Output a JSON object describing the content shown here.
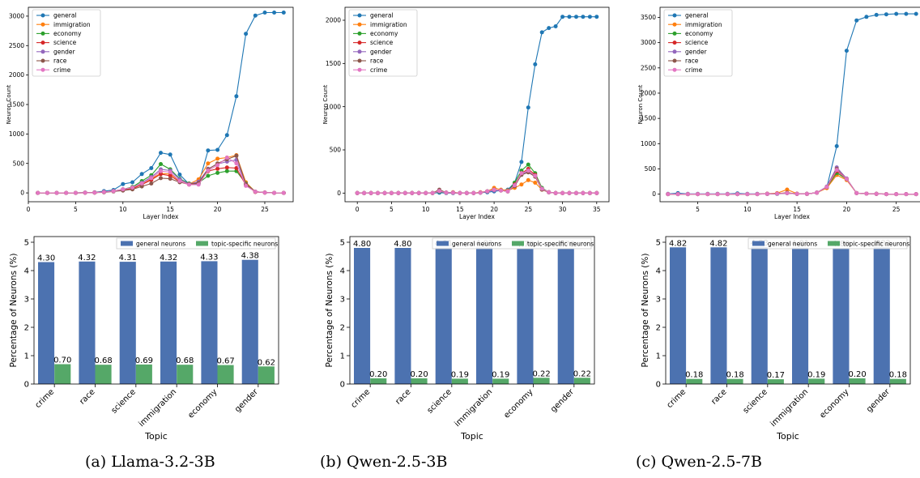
{
  "line_legend_names": [
    "general",
    "immigration",
    "economy",
    "science",
    "gender",
    "race",
    "crime"
  ],
  "line_colors": [
    "#1f77b4",
    "#ff7f0e",
    "#2ca02c",
    "#d62728",
    "#9467bd",
    "#8c564b",
    "#e377c2"
  ],
  "bar_colors": {
    "general": "#4c72b0",
    "topic": "#55a868"
  },
  "bar_legend": [
    "general neurons",
    "topic-specific neurons"
  ],
  "captions": [
    "(a) Llama-3.2-3B",
    "(b) Qwen-2.5-3B",
    "(c) Qwen-2.5-7B"
  ],
  "chart_data": [
    {
      "type": "line",
      "xlabel": "Layer Index",
      "ylabel": "Neuron Count",
      "xlim": [
        0,
        28
      ],
      "ylim": [
        -150,
        3150
      ],
      "xticks": [
        0,
        5,
        10,
        15,
        20,
        25
      ],
      "yticks": [
        0,
        500,
        1000,
        1500,
        2000,
        2500,
        3000
      ],
      "x": [
        1,
        2,
        3,
        4,
        5,
        6,
        7,
        8,
        9,
        10,
        11,
        12,
        13,
        14,
        15,
        16,
        17,
        18,
        19,
        20,
        21,
        22,
        23,
        24,
        25,
        26,
        27
      ],
      "series": [
        {
          "name": "general",
          "values": [
            0,
            0,
            0,
            0,
            0,
            5,
            10,
            30,
            50,
            150,
            180,
            320,
            420,
            680,
            650,
            310,
            150,
            150,
            720,
            730,
            980,
            1640,
            2700,
            3010,
            3060,
            3060,
            3060
          ]
        },
        {
          "name": "immigration",
          "values": [
            0,
            0,
            0,
            0,
            0,
            2,
            5,
            15,
            30,
            60,
            80,
            140,
            240,
            330,
            320,
            200,
            150,
            230,
            500,
            580,
            600,
            640,
            180,
            20,
            5,
            0,
            0
          ]
        },
        {
          "name": "economy",
          "values": [
            0,
            0,
            0,
            0,
            0,
            2,
            5,
            15,
            30,
            60,
            100,
            200,
            300,
            490,
            400,
            240,
            160,
            170,
            290,
            340,
            370,
            370,
            160,
            20,
            5,
            0,
            0
          ]
        },
        {
          "name": "science",
          "values": [
            0,
            0,
            0,
            0,
            0,
            2,
            5,
            15,
            30,
            50,
            70,
            140,
            220,
            320,
            290,
            190,
            140,
            170,
            370,
            410,
            430,
            420,
            130,
            15,
            5,
            0,
            0
          ]
        },
        {
          "name": "gender",
          "values": [
            0,
            0,
            0,
            0,
            0,
            2,
            5,
            15,
            30,
            60,
            90,
            170,
            270,
            400,
            380,
            230,
            150,
            190,
            410,
            490,
            530,
            560,
            150,
            20,
            5,
            0,
            0
          ]
        },
        {
          "name": "race",
          "values": [
            0,
            0,
            0,
            0,
            0,
            2,
            5,
            10,
            25,
            40,
            60,
            110,
            160,
            250,
            240,
            180,
            150,
            170,
            400,
            500,
            570,
            630,
            150,
            20,
            5,
            0,
            0
          ]
        },
        {
          "name": "crime",
          "values": [
            0,
            0,
            0,
            0,
            0,
            2,
            5,
            15,
            30,
            60,
            90,
            160,
            250,
            370,
            350,
            200,
            140,
            140,
            380,
            470,
            600,
            500,
            120,
            20,
            5,
            0,
            0
          ]
        }
      ]
    },
    {
      "type": "line",
      "xlabel": "Layer Index",
      "ylabel": "Neuron Count",
      "xlim": [
        -1.8,
        36.8
      ],
      "ylim": [
        -100,
        2150
      ],
      "xticks": [
        0,
        5,
        10,
        15,
        20,
        25,
        30,
        35
      ],
      "yticks": [
        0,
        500,
        1000,
        1500,
        2000
      ],
      "x": [
        0,
        1,
        2,
        3,
        4,
        5,
        6,
        7,
        8,
        9,
        10,
        11,
        12,
        13,
        14,
        15,
        16,
        17,
        18,
        19,
        20,
        21,
        22,
        23,
        24,
        25,
        26,
        27,
        28,
        29,
        30,
        31,
        32,
        33,
        34,
        35
      ],
      "series": [
        {
          "name": "general",
          "values": [
            0,
            0,
            0,
            0,
            0,
            0,
            0,
            0,
            0,
            0,
            0,
            0,
            5,
            0,
            0,
            0,
            0,
            0,
            5,
            10,
            20,
            30,
            40,
            120,
            360,
            990,
            1490,
            1860,
            1910,
            1930,
            2040,
            2040,
            2040,
            2040,
            2040,
            2040
          ]
        },
        {
          "name": "immigration",
          "values": [
            0,
            0,
            0,
            0,
            0,
            0,
            0,
            0,
            0,
            0,
            0,
            0,
            20,
            5,
            10,
            0,
            0,
            0,
            10,
            20,
            60,
            40,
            30,
            60,
            100,
            150,
            120,
            40,
            10,
            0,
            0,
            0,
            0,
            0,
            0,
            0
          ]
        },
        {
          "name": "economy",
          "values": [
            0,
            0,
            0,
            0,
            0,
            0,
            0,
            0,
            0,
            0,
            0,
            0,
            15,
            5,
            5,
            0,
            0,
            0,
            5,
            20,
            40,
            30,
            20,
            120,
            260,
            330,
            230,
            60,
            10,
            0,
            0,
            0,
            0,
            0,
            0,
            0
          ]
        },
        {
          "name": "science",
          "values": [
            0,
            0,
            0,
            0,
            0,
            0,
            0,
            0,
            0,
            0,
            0,
            0,
            30,
            5,
            5,
            0,
            0,
            0,
            5,
            20,
            40,
            30,
            20,
            100,
            230,
            280,
            210,
            50,
            10,
            0,
            0,
            0,
            0,
            0,
            0,
            0
          ]
        },
        {
          "name": "gender",
          "values": [
            0,
            0,
            0,
            0,
            0,
            0,
            0,
            0,
            0,
            0,
            0,
            0,
            20,
            5,
            5,
            0,
            0,
            0,
            5,
            20,
            30,
            30,
            20,
            90,
            220,
            250,
            200,
            50,
            10,
            0,
            0,
            0,
            0,
            0,
            0,
            0
          ]
        },
        {
          "name": "race",
          "values": [
            0,
            0,
            0,
            0,
            0,
            0,
            0,
            0,
            0,
            0,
            0,
            0,
            40,
            5,
            5,
            0,
            0,
            0,
            5,
            20,
            40,
            30,
            20,
            80,
            210,
            240,
            190,
            40,
            10,
            0,
            0,
            0,
            0,
            0,
            0,
            0
          ]
        },
        {
          "name": "crime",
          "values": [
            0,
            0,
            0,
            0,
            0,
            0,
            0,
            0,
            0,
            0,
            0,
            0,
            25,
            5,
            5,
            0,
            0,
            0,
            5,
            20,
            40,
            30,
            20,
            90,
            230,
            260,
            200,
            50,
            10,
            0,
            0,
            0,
            0,
            0,
            0,
            0
          ]
        }
      ]
    },
    {
      "type": "line",
      "xlabel": "Layer Index",
      "ylabel": "Neuron Count",
      "xlim": [
        1.2,
        27.8
      ],
      "ylim": [
        -150,
        3700
      ],
      "xticks": [
        5,
        10,
        15,
        20,
        25
      ],
      "yticks": [
        0,
        500,
        1000,
        1500,
        2000,
        2500,
        3000,
        3500
      ],
      "x": [
        2,
        3,
        4,
        5,
        6,
        7,
        8,
        9,
        10,
        11,
        12,
        13,
        14,
        15,
        16,
        17,
        18,
        19,
        20,
        21,
        22,
        23,
        24,
        25,
        26,
        27
      ],
      "series": [
        {
          "name": "general",
          "values": [
            5,
            20,
            5,
            5,
            5,
            5,
            5,
            15,
            5,
            5,
            5,
            5,
            20,
            5,
            5,
            30,
            130,
            950,
            2840,
            3440,
            3510,
            3550,
            3560,
            3570,
            3570,
            3570
          ]
        },
        {
          "name": "immigration",
          "values": [
            0,
            0,
            0,
            0,
            0,
            0,
            0,
            0,
            0,
            0,
            10,
            20,
            90,
            10,
            5,
            30,
            120,
            380,
            280,
            20,
            10,
            5,
            0,
            0,
            0,
            0
          ]
        },
        {
          "name": "economy",
          "values": [
            0,
            0,
            0,
            0,
            0,
            0,
            0,
            0,
            0,
            0,
            5,
            10,
            20,
            5,
            5,
            30,
            140,
            420,
            300,
            20,
            10,
            5,
            0,
            0,
            0,
            0
          ]
        },
        {
          "name": "science",
          "values": [
            0,
            0,
            0,
            0,
            0,
            0,
            0,
            0,
            0,
            0,
            5,
            10,
            20,
            5,
            5,
            30,
            140,
            460,
            300,
            20,
            10,
            5,
            0,
            0,
            0,
            0
          ]
        },
        {
          "name": "gender",
          "values": [
            0,
            0,
            0,
            0,
            0,
            0,
            0,
            0,
            0,
            0,
            5,
            10,
            20,
            5,
            5,
            30,
            150,
            530,
            310,
            20,
            10,
            5,
            0,
            0,
            0,
            0
          ]
        },
        {
          "name": "race",
          "values": [
            0,
            0,
            0,
            0,
            0,
            0,
            0,
            0,
            0,
            0,
            5,
            10,
            30,
            5,
            5,
            30,
            140,
            500,
            300,
            20,
            10,
            5,
            0,
            0,
            0,
            0
          ]
        },
        {
          "name": "crime",
          "values": [
            0,
            0,
            0,
            0,
            0,
            0,
            0,
            0,
            0,
            0,
            5,
            10,
            20,
            5,
            5,
            30,
            140,
            480,
            300,
            20,
            10,
            5,
            0,
            0,
            0,
            0
          ]
        }
      ]
    },
    {
      "type": "bar",
      "xlabel": "Topic",
      "ylabel": "Percentage of Neurons (%)",
      "ylim": [
        0,
        5.2
      ],
      "yticks": [
        0,
        1,
        2,
        3,
        4,
        5
      ],
      "categories": [
        "crime",
        "race",
        "science",
        "immigration",
        "economy",
        "gender"
      ],
      "series": [
        {
          "name": "general neurons",
          "values": [
            4.3,
            4.32,
            4.31,
            4.32,
            4.33,
            4.38
          ]
        },
        {
          "name": "topic-specific neurons",
          "values": [
            0.7,
            0.68,
            0.69,
            0.68,
            0.67,
            0.62
          ]
        }
      ],
      "labels": [
        [
          "4.30",
          "4.32",
          "4.31",
          "4.32",
          "4.33",
          "4.38"
        ],
        [
          "0.70",
          "0.68",
          "0.69",
          "0.68",
          "0.67",
          "0.62"
        ]
      ]
    },
    {
      "type": "bar",
      "xlabel": "Topic",
      "ylabel": "Percentage of Neurons (%)",
      "ylim": [
        0,
        5.2
      ],
      "yticks": [
        0,
        1,
        2,
        3,
        4,
        5
      ],
      "categories": [
        "crime",
        "race",
        "science",
        "immigration",
        "economy",
        "gender"
      ],
      "series": [
        {
          "name": "general neurons",
          "values": [
            4.8,
            4.8,
            4.81,
            4.81,
            4.78,
            4.78
          ]
        },
        {
          "name": "topic-specific neurons",
          "values": [
            0.2,
            0.2,
            0.19,
            0.19,
            0.22,
            0.22
          ]
        }
      ],
      "labels": [
        [
          "4.80",
          "4.80",
          "4.81",
          "4.81",
          "4.78",
          "4.78"
        ],
        [
          "0.20",
          "0.20",
          "0.19",
          "0.19",
          "0.22",
          "0.22"
        ]
      ]
    },
    {
      "type": "bar",
      "xlabel": "Topic",
      "ylabel": "Percentage of Neurons (%)",
      "ylim": [
        0,
        5.2
      ],
      "yticks": [
        0,
        1,
        2,
        3,
        4,
        5
      ],
      "categories": [
        "crime",
        "race",
        "science",
        "immigration",
        "economy",
        "gender"
      ],
      "series": [
        {
          "name": "general neurons",
          "values": [
            4.82,
            4.82,
            4.83,
            4.81,
            4.8,
            4.82
          ]
        },
        {
          "name": "topic-specific neurons",
          "values": [
            0.18,
            0.18,
            0.17,
            0.19,
            0.2,
            0.18
          ]
        }
      ],
      "labels": [
        [
          "4.82",
          "4.82",
          "4.83",
          "4.81",
          "4.80",
          "4.82"
        ],
        [
          "0.18",
          "0.18",
          "0.17",
          "0.19",
          "0.20",
          "0.18"
        ]
      ]
    }
  ]
}
